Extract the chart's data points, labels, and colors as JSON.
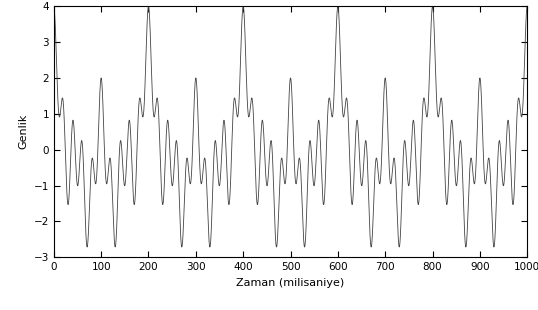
{
  "frequencies_hz": [
    5,
    10,
    20,
    50
  ],
  "amplitudes": [
    1,
    1,
    1,
    1
  ],
  "t_start_ms": 0,
  "t_end_ms": 1000,
  "num_samples": 10000,
  "xlabel": "Zaman (milisaniye)",
  "ylabel": "Genlik",
  "xlim": [
    0,
    1000
  ],
  "ylim": [
    -3,
    4
  ],
  "yticks": [
    -3,
    -2,
    -1,
    0,
    1,
    2,
    3,
    4
  ],
  "xticks": [
    0,
    100,
    200,
    300,
    400,
    500,
    600,
    700,
    800,
    900,
    1000
  ],
  "line_color": "#444444",
  "line_width": 0.6,
  "background_color": "#ffffff",
  "xlabel_fontsize": 8,
  "ylabel_fontsize": 8,
  "tick_fontsize": 7.5
}
